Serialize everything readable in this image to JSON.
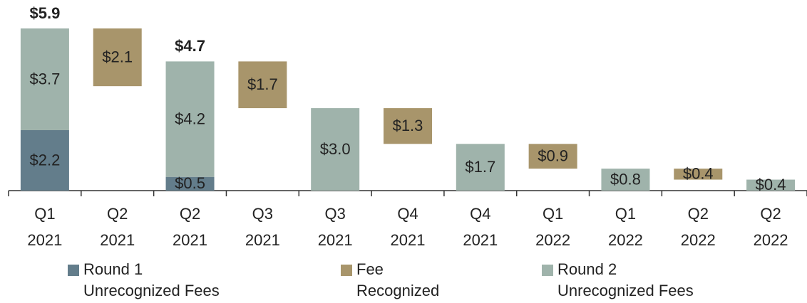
{
  "chart_data": {
    "type": "waterfall",
    "categories": [
      "Q1\n2021",
      "Q2\n2021",
      "Q2\n2021",
      "Q3\n2021",
      "Q3\n2021",
      "Q4\n2021",
      "Q4\n2021",
      "Q1\n2022",
      "Q1\n2022",
      "Q2\n2022",
      "Q2\n2022"
    ],
    "series": [
      {
        "name": "Round 1\nUnrecognized Fees",
        "color": "#637d8b",
        "values": [
          2.2,
          null,
          0.5,
          null,
          null,
          null,
          null,
          null,
          null,
          null,
          null
        ],
        "value_labels": [
          "$2.2",
          null,
          "$0.5",
          null,
          null,
          null,
          null,
          null,
          null,
          null,
          null
        ]
      },
      {
        "name": "Fee\nRecognized",
        "color": "#a8956b",
        "values": [
          null,
          2.1,
          null,
          1.7,
          null,
          1.3,
          null,
          0.9,
          null,
          0.4,
          null
        ],
        "value_labels": [
          null,
          "$2.1",
          null,
          "$1.7",
          null,
          "$1.3",
          null,
          "$0.9",
          null,
          "$0.4",
          null
        ]
      },
      {
        "name": "Round 2\nUnrecognized Fees",
        "color": "#9fb3ab",
        "values": [
          3.7,
          null,
          4.2,
          null,
          3.0,
          null,
          1.7,
          null,
          0.8,
          null,
          0.4
        ],
        "value_labels": [
          "$3.7",
          null,
          "$4.2",
          null,
          "$3.0",
          null,
          "$1.7",
          null,
          "$0.8",
          null,
          "$0.4"
        ]
      }
    ],
    "totals": {
      "values": [
        5.9,
        null,
        4.7,
        null,
        null,
        null,
        null,
        null,
        null,
        null,
        null
      ],
      "value_labels": [
        "$5.9",
        null,
        "$4.7",
        null,
        null,
        null,
        null,
        null,
        null,
        null,
        null
      ]
    },
    "legend": "bottom"
  }
}
